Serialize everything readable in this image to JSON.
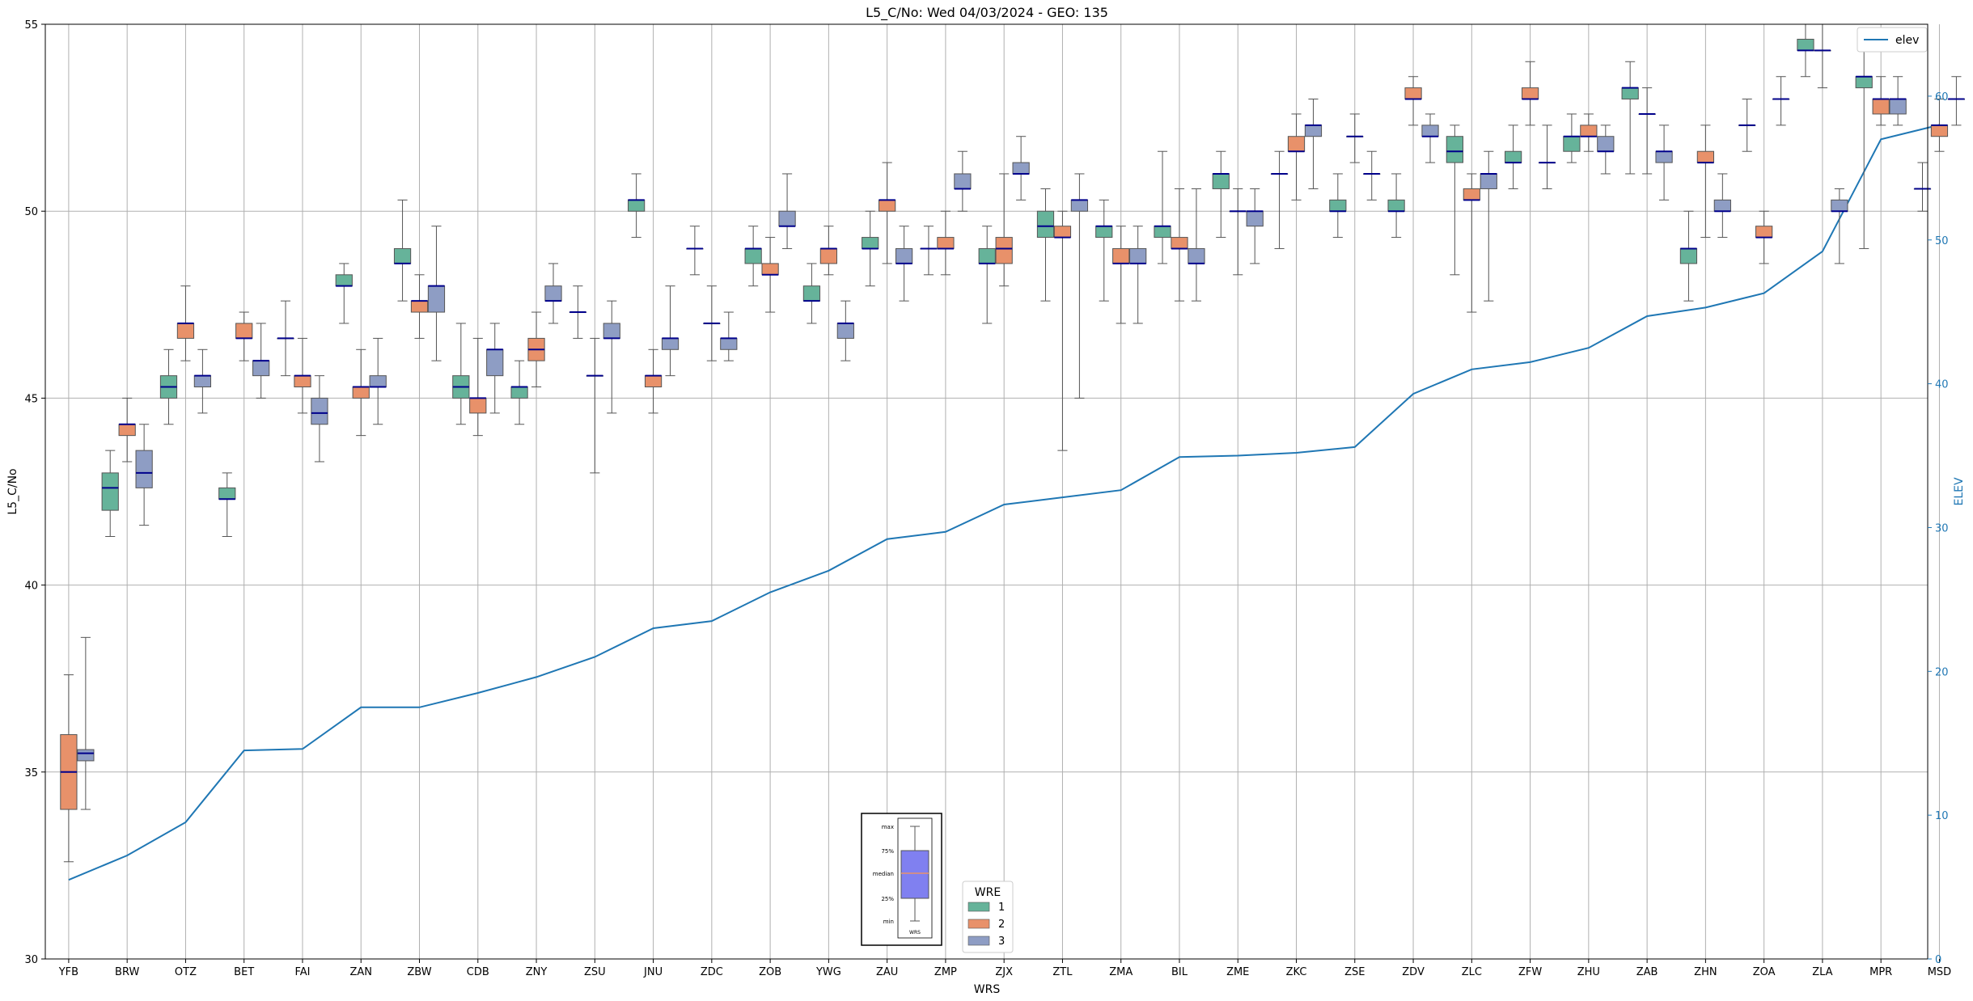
{
  "chart_data": {
    "type": "box",
    "title": "L5_C/No: Wed 04/03/2024 - GEO: 135",
    "xlabel": "WRS",
    "ylabel": "L5_C/No",
    "y2label": "ELEV",
    "ylim": [
      30,
      55
    ],
    "y2lim": [
      0,
      65
    ],
    "yticks": [
      30,
      35,
      40,
      45,
      50,
      55
    ],
    "y2ticks": [
      0,
      10,
      20,
      30,
      40,
      50,
      60
    ],
    "grid": true,
    "categories": [
      "YFB",
      "BRW",
      "OTZ",
      "BET",
      "FAI",
      "ZAN",
      "ZBW",
      "CDB",
      "ZNY",
      "ZSU",
      "JNU",
      "ZDC",
      "ZOB",
      "YWG",
      "ZAU",
      "ZMP",
      "ZJX",
      "ZTL",
      "ZMA",
      "BIL",
      "ZME",
      "ZKC",
      "ZSE",
      "ZDV",
      "ZLC",
      "ZFW",
      "ZHU",
      "ZAB",
      "ZHN",
      "ZOA",
      "ZLA",
      "MPR",
      "MSD"
    ],
    "wre_colors": {
      "1": "#66b39a",
      "2": "#e8916a",
      "3": "#8e9dc4"
    },
    "legend": {
      "title": "WRE",
      "entries": [
        "1",
        "2",
        "3"
      ],
      "placement": "bottom-center"
    },
    "line_legend": {
      "label": "elev",
      "color": "#1f77b4",
      "placement": "top-right"
    },
    "elev": [
      5.5,
      7.2,
      9.5,
      14.5,
      14.6,
      17.5,
      17.5,
      18.5,
      19.6,
      21.0,
      23.0,
      23.5,
      25.5,
      27.0,
      29.2,
      29.7,
      31.6,
      32.1,
      32.6,
      34.9,
      35.0,
      35.2,
      35.6,
      39.3,
      41.0,
      41.5,
      42.5,
      44.7,
      45.3,
      46.3,
      49.2,
      57.0,
      58.0
    ],
    "boxes": [
      {
        "cat": "YFB",
        "wre": 2,
        "min": 32.6,
        "q1": 34.0,
        "med": 35.0,
        "q3": 36.0,
        "max": 37.6
      },
      {
        "cat": "YFB",
        "wre": 3,
        "min": 34.0,
        "q1": 35.3,
        "med": 35.5,
        "q3": 35.6,
        "max": 38.6
      },
      {
        "cat": "BRW",
        "wre": 1,
        "min": 41.3,
        "q1": 42.0,
        "med": 42.6,
        "q3": 43.0,
        "max": 43.6
      },
      {
        "cat": "BRW",
        "wre": 2,
        "min": 43.3,
        "q1": 44.0,
        "med": 44.3,
        "q3": 44.3,
        "max": 45.0
      },
      {
        "cat": "BRW",
        "wre": 3,
        "min": 41.6,
        "q1": 42.6,
        "med": 43.0,
        "q3": 43.6,
        "max": 44.3
      },
      {
        "cat": "OTZ",
        "wre": 1,
        "min": 44.3,
        "q1": 45.0,
        "med": 45.3,
        "q3": 45.6,
        "max": 46.3
      },
      {
        "cat": "OTZ",
        "wre": 2,
        "min": 46.0,
        "q1": 46.6,
        "med": 47.0,
        "q3": 47.0,
        "max": 48.0
      },
      {
        "cat": "OTZ",
        "wre": 3,
        "min": 44.6,
        "q1": 45.3,
        "med": 45.6,
        "q3": 45.6,
        "max": 46.3
      },
      {
        "cat": "BET",
        "wre": 1,
        "min": 41.3,
        "q1": 42.3,
        "med": 42.3,
        "q3": 42.6,
        "max": 43.0
      },
      {
        "cat": "BET",
        "wre": 2,
        "min": 46.0,
        "q1": 46.6,
        "med": 46.6,
        "q3": 47.0,
        "max": 47.3
      },
      {
        "cat": "BET",
        "wre": 3,
        "min": 45.0,
        "q1": 45.6,
        "med": 46.0,
        "q3": 46.0,
        "max": 47.0
      },
      {
        "cat": "FAI",
        "wre": 1,
        "min": 45.6,
        "q1": 46.6,
        "med": 46.6,
        "q3": 46.6,
        "max": 47.6
      },
      {
        "cat": "FAI",
        "wre": 2,
        "min": 44.6,
        "q1": 45.3,
        "med": 45.6,
        "q3": 45.6,
        "max": 46.6
      },
      {
        "cat": "FAI",
        "wre": 3,
        "min": 43.3,
        "q1": 44.3,
        "med": 44.6,
        "q3": 45.0,
        "max": 45.6
      },
      {
        "cat": "ZAN",
        "wre": 1,
        "min": 47.0,
        "q1": 48.0,
        "med": 48.0,
        "q3": 48.3,
        "max": 48.6
      },
      {
        "cat": "ZAN",
        "wre": 2,
        "min": 44.0,
        "q1": 45.0,
        "med": 45.3,
        "q3": 45.3,
        "max": 46.3
      },
      {
        "cat": "ZAN",
        "wre": 3,
        "min": 44.3,
        "q1": 45.3,
        "med": 45.3,
        "q3": 45.6,
        "max": 46.6
      },
      {
        "cat": "ZBW",
        "wre": 1,
        "min": 47.6,
        "q1": 48.6,
        "med": 48.6,
        "q3": 49.0,
        "max": 50.3
      },
      {
        "cat": "ZBW",
        "wre": 2,
        "min": 46.6,
        "q1": 47.3,
        "med": 47.6,
        "q3": 47.6,
        "max": 48.3
      },
      {
        "cat": "ZBW",
        "wre": 3,
        "min": 46.0,
        "q1": 47.3,
        "med": 48.0,
        "q3": 48.0,
        "max": 49.6
      },
      {
        "cat": "CDB",
        "wre": 1,
        "min": 44.3,
        "q1": 45.0,
        "med": 45.3,
        "q3": 45.6,
        "max": 47.0
      },
      {
        "cat": "CDB",
        "wre": 2,
        "min": 44.0,
        "q1": 44.6,
        "med": 45.0,
        "q3": 45.0,
        "max": 46.6
      },
      {
        "cat": "CDB",
        "wre": 3,
        "min": 44.6,
        "q1": 45.6,
        "med": 46.3,
        "q3": 46.3,
        "max": 47.0
      },
      {
        "cat": "ZNY",
        "wre": 1,
        "min": 44.3,
        "q1": 45.0,
        "med": 45.3,
        "q3": 45.3,
        "max": 46.0
      },
      {
        "cat": "ZNY",
        "wre": 2,
        "min": 45.3,
        "q1": 46.0,
        "med": 46.3,
        "q3": 46.6,
        "max": 47.3
      },
      {
        "cat": "ZNY",
        "wre": 3,
        "min": 47.0,
        "q1": 47.6,
        "med": 47.6,
        "q3": 48.0,
        "max": 48.6
      },
      {
        "cat": "ZSU",
        "wre": 1,
        "min": 46.6,
        "q1": 47.3,
        "med": 47.3,
        "q3": 47.3,
        "max": 48.0
      },
      {
        "cat": "ZSU",
        "wre": 2,
        "min": 43.0,
        "q1": 45.6,
        "med": 45.6,
        "q3": 45.6,
        "max": 46.6
      },
      {
        "cat": "ZSU",
        "wre": 3,
        "min": 44.6,
        "q1": 46.6,
        "med": 46.6,
        "q3": 47.0,
        "max": 47.6
      },
      {
        "cat": "JNU",
        "wre": 1,
        "min": 49.3,
        "q1": 50.0,
        "med": 50.3,
        "q3": 50.3,
        "max": 51.0
      },
      {
        "cat": "JNU",
        "wre": 2,
        "min": 44.6,
        "q1": 45.3,
        "med": 45.6,
        "q3": 45.6,
        "max": 46.3
      },
      {
        "cat": "JNU",
        "wre": 3,
        "min": 45.6,
        "q1": 46.3,
        "med": 46.6,
        "q3": 46.6,
        "max": 48.0
      },
      {
        "cat": "ZDC",
        "wre": 1,
        "min": 48.3,
        "q1": 49.0,
        "med": 49.0,
        "q3": 49.0,
        "max": 49.6
      },
      {
        "cat": "ZDC",
        "wre": 2,
        "min": 46.0,
        "q1": 47.0,
        "med": 47.0,
        "q3": 47.0,
        "max": 48.0
      },
      {
        "cat": "ZDC",
        "wre": 3,
        "min": 46.0,
        "q1": 46.3,
        "med": 46.6,
        "q3": 46.6,
        "max": 47.3
      },
      {
        "cat": "ZOB",
        "wre": 1,
        "min": 48.0,
        "q1": 48.6,
        "med": 49.0,
        "q3": 49.0,
        "max": 49.6
      },
      {
        "cat": "ZOB",
        "wre": 2,
        "min": 47.3,
        "q1": 48.3,
        "med": 48.3,
        "q3": 48.6,
        "max": 49.3
      },
      {
        "cat": "ZOB",
        "wre": 3,
        "min": 49.0,
        "q1": 49.6,
        "med": 49.6,
        "q3": 50.0,
        "max": 51.0
      },
      {
        "cat": "YWG",
        "wre": 1,
        "min": 47.0,
        "q1": 47.6,
        "med": 47.6,
        "q3": 48.0,
        "max": 48.6
      },
      {
        "cat": "YWG",
        "wre": 2,
        "min": 48.3,
        "q1": 48.6,
        "med": 49.0,
        "q3": 49.0,
        "max": 49.6
      },
      {
        "cat": "YWG",
        "wre": 3,
        "min": 46.0,
        "q1": 46.6,
        "med": 47.0,
        "q3": 47.0,
        "max": 47.6
      },
      {
        "cat": "ZAU",
        "wre": 1,
        "min": 48.0,
        "q1": 49.0,
        "med": 49.0,
        "q3": 49.3,
        "max": 50.0
      },
      {
        "cat": "ZAU",
        "wre": 2,
        "min": 48.6,
        "q1": 50.0,
        "med": 50.3,
        "q3": 50.3,
        "max": 51.3
      },
      {
        "cat": "ZAU",
        "wre": 3,
        "min": 47.6,
        "q1": 48.6,
        "med": 48.6,
        "q3": 49.0,
        "max": 49.6
      },
      {
        "cat": "ZMP",
        "wre": 1,
        "min": 48.3,
        "q1": 49.0,
        "med": 49.0,
        "q3": 49.0,
        "max": 49.6
      },
      {
        "cat": "ZMP",
        "wre": 2,
        "min": 48.3,
        "q1": 49.0,
        "med": 49.0,
        "q3": 49.3,
        "max": 50.0
      },
      {
        "cat": "ZMP",
        "wre": 3,
        "min": 50.0,
        "q1": 50.6,
        "med": 50.6,
        "q3": 51.0,
        "max": 51.6
      },
      {
        "cat": "ZJX",
        "wre": 1,
        "min": 47.0,
        "q1": 48.6,
        "med": 48.6,
        "q3": 49.0,
        "max": 49.6
      },
      {
        "cat": "ZJX",
        "wre": 2,
        "min": 48.0,
        "q1": 48.6,
        "med": 49.0,
        "q3": 49.3,
        "max": 51.0
      },
      {
        "cat": "ZJX",
        "wre": 3,
        "min": 50.3,
        "q1": 51.0,
        "med": 51.0,
        "q3": 51.3,
        "max": 52.0
      },
      {
        "cat": "ZTL",
        "wre": 1,
        "min": 47.6,
        "q1": 49.3,
        "med": 49.6,
        "q3": 50.0,
        "max": 50.6
      },
      {
        "cat": "ZTL",
        "wre": 2,
        "min": 43.6,
        "q1": 49.3,
        "med": 49.3,
        "q3": 49.6,
        "max": 50.0
      },
      {
        "cat": "ZTL",
        "wre": 3,
        "min": 45.0,
        "q1": 50.0,
        "med": 50.3,
        "q3": 50.3,
        "max": 51.0
      },
      {
        "cat": "ZMA",
        "wre": 1,
        "min": 47.6,
        "q1": 49.3,
        "med": 49.6,
        "q3": 49.6,
        "max": 50.3
      },
      {
        "cat": "ZMA",
        "wre": 2,
        "min": 47.0,
        "q1": 48.6,
        "med": 48.6,
        "q3": 49.0,
        "max": 49.6
      },
      {
        "cat": "ZMA",
        "wre": 3,
        "min": 47.0,
        "q1": 48.6,
        "med": 48.6,
        "q3": 49.0,
        "max": 49.6
      },
      {
        "cat": "BIL",
        "wre": 1,
        "min": 48.6,
        "q1": 49.3,
        "med": 49.6,
        "q3": 49.6,
        "max": 51.6
      },
      {
        "cat": "BIL",
        "wre": 2,
        "min": 47.6,
        "q1": 49.0,
        "med": 49.0,
        "q3": 49.3,
        "max": 50.6
      },
      {
        "cat": "BIL",
        "wre": 3,
        "min": 47.6,
        "q1": 48.6,
        "med": 48.6,
        "q3": 49.0,
        "max": 50.6
      },
      {
        "cat": "ZME",
        "wre": 1,
        "min": 49.3,
        "q1": 50.6,
        "med": 51.0,
        "q3": 51.0,
        "max": 51.6
      },
      {
        "cat": "ZME",
        "wre": 2,
        "min": 48.3,
        "q1": 50.0,
        "med": 50.0,
        "q3": 50.0,
        "max": 50.6
      },
      {
        "cat": "ZME",
        "wre": 3,
        "min": 48.6,
        "q1": 49.6,
        "med": 50.0,
        "q3": 50.0,
        "max": 50.6
      },
      {
        "cat": "ZKC",
        "wre": 1,
        "min": 49.0,
        "q1": 51.0,
        "med": 51.0,
        "q3": 51.0,
        "max": 51.6
      },
      {
        "cat": "ZKC",
        "wre": 2,
        "min": 50.3,
        "q1": 51.6,
        "med": 51.6,
        "q3": 52.0,
        "max": 52.6
      },
      {
        "cat": "ZKC",
        "wre": 3,
        "min": 50.6,
        "q1": 52.0,
        "med": 52.3,
        "q3": 52.3,
        "max": 53.0
      },
      {
        "cat": "ZSE",
        "wre": 1,
        "min": 49.3,
        "q1": 50.0,
        "med": 50.0,
        "q3": 50.3,
        "max": 51.0
      },
      {
        "cat": "ZSE",
        "wre": 2,
        "min": 51.3,
        "q1": 52.0,
        "med": 52.0,
        "q3": 52.0,
        "max": 52.6
      },
      {
        "cat": "ZSE",
        "wre": 3,
        "min": 50.3,
        "q1": 51.0,
        "med": 51.0,
        "q3": 51.0,
        "max": 51.6
      },
      {
        "cat": "ZDV",
        "wre": 1,
        "min": 49.3,
        "q1": 50.0,
        "med": 50.0,
        "q3": 50.3,
        "max": 51.0
      },
      {
        "cat": "ZDV",
        "wre": 2,
        "min": 52.3,
        "q1": 53.0,
        "med": 53.0,
        "q3": 53.3,
        "max": 53.6
      },
      {
        "cat": "ZDV",
        "wre": 3,
        "min": 51.3,
        "q1": 52.0,
        "med": 52.0,
        "q3": 52.3,
        "max": 52.6
      },
      {
        "cat": "ZLC",
        "wre": 1,
        "min": 48.3,
        "q1": 51.3,
        "med": 51.6,
        "q3": 52.0,
        "max": 52.3
      },
      {
        "cat": "ZLC",
        "wre": 2,
        "min": 47.3,
        "q1": 50.3,
        "med": 50.3,
        "q3": 50.6,
        "max": 51.0
      },
      {
        "cat": "ZLC",
        "wre": 3,
        "min": 47.6,
        "q1": 50.6,
        "med": 51.0,
        "q3": 51.0,
        "max": 51.6
      },
      {
        "cat": "ZFW",
        "wre": 1,
        "min": 50.6,
        "q1": 51.3,
        "med": 51.3,
        "q3": 51.6,
        "max": 52.3
      },
      {
        "cat": "ZFW",
        "wre": 2,
        "min": 52.3,
        "q1": 53.0,
        "med": 53.0,
        "q3": 53.3,
        "max": 54.0
      },
      {
        "cat": "ZFW",
        "wre": 3,
        "min": 50.6,
        "q1": 51.3,
        "med": 51.3,
        "q3": 51.3,
        "max": 52.3
      },
      {
        "cat": "ZHU",
        "wre": 1,
        "min": 51.3,
        "q1": 51.6,
        "med": 52.0,
        "q3": 52.0,
        "max": 52.6
      },
      {
        "cat": "ZHU",
        "wre": 2,
        "min": 51.6,
        "q1": 52.0,
        "med": 52.0,
        "q3": 52.3,
        "max": 52.6
      },
      {
        "cat": "ZHU",
        "wre": 3,
        "min": 51.0,
        "q1": 51.6,
        "med": 51.6,
        "q3": 52.0,
        "max": 52.3
      },
      {
        "cat": "ZAB",
        "wre": 1,
        "min": 51.0,
        "q1": 53.0,
        "med": 53.3,
        "q3": 53.3,
        "max": 54.0
      },
      {
        "cat": "ZAB",
        "wre": 2,
        "min": 51.0,
        "q1": 52.6,
        "med": 52.6,
        "q3": 52.6,
        "max": 53.3
      },
      {
        "cat": "ZAB",
        "wre": 3,
        "min": 50.3,
        "q1": 51.3,
        "med": 51.6,
        "q3": 51.6,
        "max": 52.3
      },
      {
        "cat": "ZHN",
        "wre": 1,
        "min": 47.6,
        "q1": 48.6,
        "med": 49.0,
        "q3": 49.0,
        "max": 50.0
      },
      {
        "cat": "ZHN",
        "wre": 2,
        "min": 49.3,
        "q1": 51.3,
        "med": 51.3,
        "q3": 51.6,
        "max": 52.3
      },
      {
        "cat": "ZHN",
        "wre": 3,
        "min": 49.3,
        "q1": 50.0,
        "med": 50.0,
        "q3": 50.3,
        "max": 51.0
      },
      {
        "cat": "ZOA",
        "wre": 1,
        "min": 51.6,
        "q1": 52.3,
        "med": 52.3,
        "q3": 52.3,
        "max": 53.0
      },
      {
        "cat": "ZOA",
        "wre": 2,
        "min": 48.6,
        "q1": 49.3,
        "med": 49.3,
        "q3": 49.6,
        "max": 50.0
      },
      {
        "cat": "ZOA",
        "wre": 3,
        "min": 52.3,
        "q1": 53.0,
        "med": 53.0,
        "q3": 53.0,
        "max": 53.6
      },
      {
        "cat": "ZLA",
        "wre": 1,
        "min": 53.6,
        "q1": 54.3,
        "med": 54.3,
        "q3": 54.6,
        "max": 55.0
      },
      {
        "cat": "ZLA",
        "wre": 2,
        "min": 53.3,
        "q1": 54.3,
        "med": 54.3,
        "q3": 54.3,
        "max": 55.0
      },
      {
        "cat": "ZLA",
        "wre": 3,
        "min": 48.6,
        "q1": 50.0,
        "med": 50.0,
        "q3": 50.3,
        "max": 50.6
      },
      {
        "cat": "MPR",
        "wre": 1,
        "min": 49.0,
        "q1": 53.3,
        "med": 53.6,
        "q3": 53.6,
        "max": 54.3
      },
      {
        "cat": "MPR",
        "wre": 2,
        "min": 52.3,
        "q1": 52.6,
        "med": 53.0,
        "q3": 53.0,
        "max": 53.6
      },
      {
        "cat": "MPR",
        "wre": 3,
        "min": 52.3,
        "q1": 52.6,
        "med": 53.0,
        "q3": 53.0,
        "max": 53.6
      },
      {
        "cat": "MSD",
        "wre": 1,
        "min": 50.0,
        "q1": 50.6,
        "med": 50.6,
        "q3": 50.6,
        "max": 51.3
      },
      {
        "cat": "MSD",
        "wre": 2,
        "min": 51.6,
        "q1": 52.0,
        "med": 52.3,
        "q3": 52.3,
        "max": 53.0
      },
      {
        "cat": "MSD",
        "wre": 3,
        "min": 52.3,
        "q1": 53.0,
        "med": 53.0,
        "q3": 53.0,
        "max": 53.6
      }
    ],
    "key_inset": {
      "labels": [
        "max",
        "75%",
        "median",
        "25%",
        "min"
      ],
      "xlabel": "WRS"
    }
  }
}
